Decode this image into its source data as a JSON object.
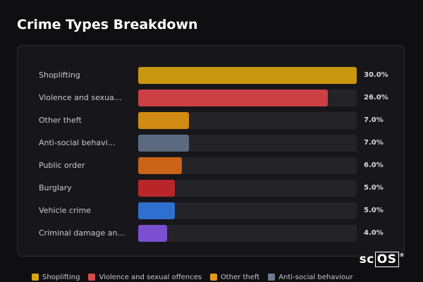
{
  "title": "Crime Types Breakdown",
  "chart_data": {
    "type": "bar",
    "orientation": "horizontal",
    "title": "Crime Types Breakdown",
    "categories": [
      "Shoplifting",
      "Violence and sexua…",
      "Other theft",
      "Anti-social behavi…",
      "Public order",
      "Burglary",
      "Vehicle crime",
      "Criminal damage an…"
    ],
    "values": [
      30.0,
      26.0,
      7.0,
      7.0,
      6.0,
      5.0,
      5.0,
      4.0
    ],
    "value_labels": [
      "30.0%",
      "26.0%",
      "7.0%",
      "7.0%",
      "6.0%",
      "5.0%",
      "5.0%",
      "4.0%"
    ],
    "colors": [
      "#c9960f",
      "#cc3f44",
      "#d18a12",
      "#5c6a80",
      "#c96418",
      "#b8262a",
      "#2f6fd0",
      "#7a4fd0"
    ],
    "xlim": [
      0,
      30
    ],
    "grid": false,
    "legend_position": "bottom"
  },
  "legend": [
    {
      "label": "Shoplifting",
      "color": "#d9a514"
    },
    {
      "label": "Violence and sexual offences",
      "color": "#d84a4f"
    },
    {
      "label": "Other theft",
      "color": "#e09a1a"
    },
    {
      "label": "Anti-social behaviour",
      "color": "#6b7a92"
    }
  ],
  "logo": {
    "prefix": "sc",
    "boxed": "OS",
    "mark": "®"
  }
}
